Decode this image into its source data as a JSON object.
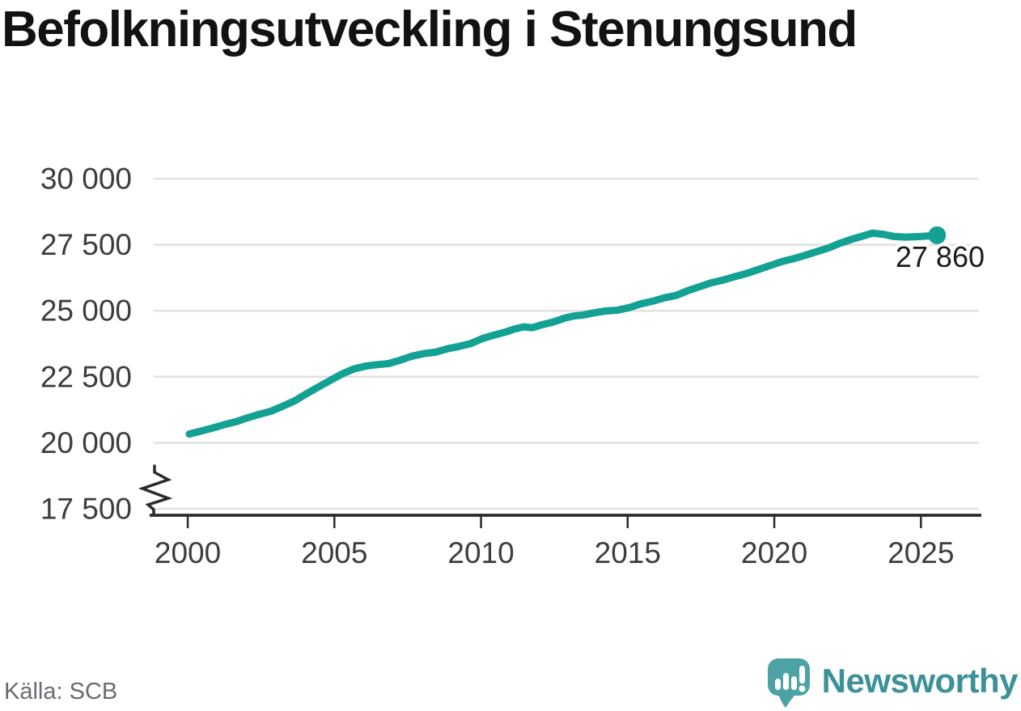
{
  "title": "Befolkningsutveckling i Stenungsund",
  "footer": {
    "source_label": "Källa: SCB",
    "brand_wordmark": "Newsworthy"
  },
  "chart_data": {
    "type": "line",
    "title": "Befolkningsutveckling i Stenungsund",
    "xlabel": "",
    "ylabel": "",
    "x_range": [
      1998.84,
      2027.06
    ],
    "y_range": [
      17500,
      30000
    ],
    "y_axis_break": true,
    "grid": true,
    "legend": "none",
    "x_ticks": [
      {
        "value": 2000,
        "label": "2000"
      },
      {
        "value": 2005,
        "label": "2005"
      },
      {
        "value": 2010,
        "label": "2010"
      },
      {
        "value": 2015,
        "label": "2015"
      },
      {
        "value": 2020,
        "label": "2020"
      },
      {
        "value": 2025,
        "label": "2025"
      }
    ],
    "y_ticks": [
      {
        "value": 17500,
        "label": "17 500"
      },
      {
        "value": 20000,
        "label": "20 000"
      },
      {
        "value": 22500,
        "label": "22 500"
      },
      {
        "value": 25000,
        "label": "25 000"
      },
      {
        "value": 27500,
        "label": "27 500"
      },
      {
        "value": 30000,
        "label": "30 000"
      }
    ],
    "end_label": {
      "text": "27 860",
      "value": 27860,
      "year": 2025.55
    },
    "colors": {
      "line": "#12a193",
      "grid": "#e1e1e1",
      "axis": "#2b2b2b",
      "tick_text": "#3d3d3d",
      "end_label_text": "#1c1c1c"
    },
    "series": [
      {
        "name": "Folkmängd",
        "color": "#12a193",
        "points": [
          [
            2000.05,
            20330
          ],
          [
            2000.45,
            20440
          ],
          [
            2000.85,
            20560
          ],
          [
            2001.25,
            20690
          ],
          [
            2001.65,
            20800
          ],
          [
            2002.05,
            20950
          ],
          [
            2002.45,
            21080
          ],
          [
            2002.85,
            21200
          ],
          [
            2003.25,
            21390
          ],
          [
            2003.65,
            21590
          ],
          [
            2004.05,
            21860
          ],
          [
            2004.45,
            22110
          ],
          [
            2004.85,
            22360
          ],
          [
            2005.25,
            22600
          ],
          [
            2005.65,
            22790
          ],
          [
            2006.05,
            22900
          ],
          [
            2006.45,
            22960
          ],
          [
            2006.85,
            23000
          ],
          [
            2007.25,
            23130
          ],
          [
            2007.65,
            23280
          ],
          [
            2008.05,
            23380
          ],
          [
            2008.45,
            23430
          ],
          [
            2008.85,
            23560
          ],
          [
            2009.25,
            23650
          ],
          [
            2009.65,
            23760
          ],
          [
            2010.05,
            23950
          ],
          [
            2010.45,
            24080
          ],
          [
            2010.85,
            24200
          ],
          [
            2011.15,
            24310
          ],
          [
            2011.45,
            24390
          ],
          [
            2011.75,
            24360
          ],
          [
            2012.05,
            24460
          ],
          [
            2012.45,
            24570
          ],
          [
            2012.85,
            24720
          ],
          [
            2013.15,
            24800
          ],
          [
            2013.45,
            24830
          ],
          [
            2013.85,
            24920
          ],
          [
            2014.25,
            24990
          ],
          [
            2014.65,
            25020
          ],
          [
            2015.05,
            25120
          ],
          [
            2015.45,
            25260
          ],
          [
            2015.85,
            25360
          ],
          [
            2016.25,
            25490
          ],
          [
            2016.65,
            25580
          ],
          [
            2017.05,
            25760
          ],
          [
            2017.45,
            25910
          ],
          [
            2017.85,
            26060
          ],
          [
            2018.25,
            26160
          ],
          [
            2018.65,
            26290
          ],
          [
            2019.05,
            26410
          ],
          [
            2019.45,
            26560
          ],
          [
            2019.85,
            26710
          ],
          [
            2020.25,
            26860
          ],
          [
            2020.65,
            26970
          ],
          [
            2021.05,
            27100
          ],
          [
            2021.45,
            27240
          ],
          [
            2021.85,
            27380
          ],
          [
            2022.25,
            27560
          ],
          [
            2022.65,
            27710
          ],
          [
            2023.05,
            27840
          ],
          [
            2023.35,
            27940
          ],
          [
            2023.75,
            27890
          ],
          [
            2024.05,
            27820
          ],
          [
            2024.45,
            27790
          ],
          [
            2024.85,
            27805
          ],
          [
            2025.15,
            27825
          ],
          [
            2025.55,
            27860
          ]
        ]
      }
    ]
  }
}
